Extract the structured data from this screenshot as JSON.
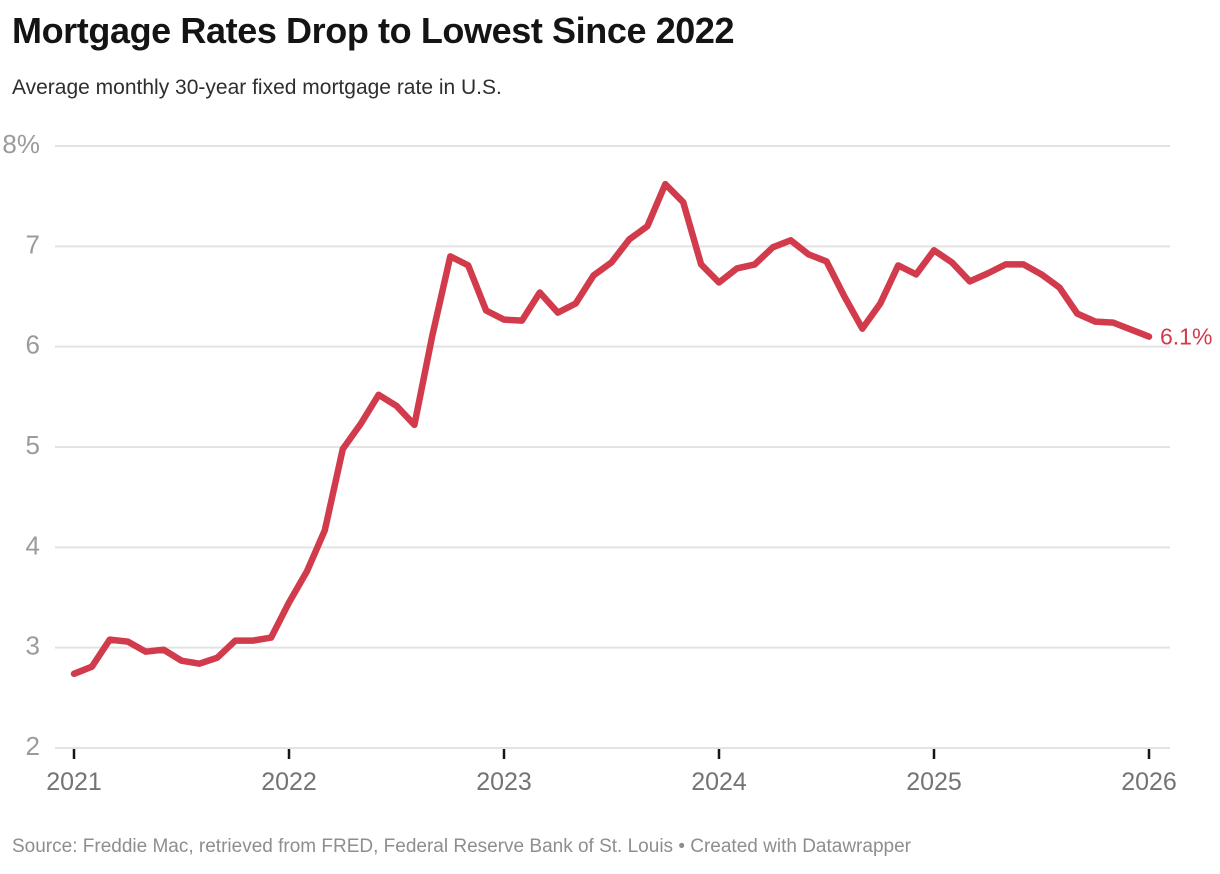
{
  "header": {
    "title": "Mortgage Rates Drop to Lowest Since 2022",
    "subtitle": "Average monthly 30-year fixed mortgage rate in U.S."
  },
  "footer": {
    "source": "Source: Freddie Mac, retrieved from FRED, Federal Reserve Bank of St. Louis • Created with Datawrapper"
  },
  "colors": {
    "line": "#d23b4c",
    "end_label": "#d23b4c",
    "gridline": "#e3e3e3",
    "tick_mark": "#161616",
    "y_label": "#9b9b9b",
    "x_label": "#747474"
  },
  "chart_data": {
    "type": "line",
    "title": "Mortgage Rates Drop to Lowest Since 2022",
    "subtitle": "Average monthly 30-year fixed mortgage rate in U.S.",
    "series_name": "Average monthly 30-year fixed mortgage rate in U.S.",
    "unit": "%",
    "xlabel": "",
    "ylabel": "",
    "legend": "none",
    "grid": "horizontal",
    "ylim": [
      2,
      8
    ],
    "x": [
      "2021-01",
      "2021-02",
      "2021-03",
      "2021-04",
      "2021-05",
      "2021-06",
      "2021-07",
      "2021-08",
      "2021-09",
      "2021-10",
      "2021-11",
      "2021-12",
      "2022-01",
      "2022-02",
      "2022-03",
      "2022-04",
      "2022-05",
      "2022-06",
      "2022-07",
      "2022-08",
      "2022-09",
      "2022-10",
      "2022-11",
      "2022-12",
      "2023-01",
      "2023-02",
      "2023-03",
      "2023-04",
      "2023-05",
      "2023-06",
      "2023-07",
      "2023-08",
      "2023-09",
      "2023-10",
      "2023-11",
      "2023-12",
      "2024-01",
      "2024-02",
      "2024-03",
      "2024-04",
      "2024-05",
      "2024-06",
      "2024-07",
      "2024-08",
      "2024-09",
      "2024-10",
      "2024-11",
      "2024-12",
      "2025-01",
      "2025-02",
      "2025-03",
      "2025-04",
      "2025-05",
      "2025-06",
      "2025-07",
      "2025-08",
      "2025-09",
      "2025-10",
      "2025-11",
      "2025-12",
      "2026-01"
    ],
    "values": [
      2.74,
      2.81,
      3.08,
      3.06,
      2.96,
      2.98,
      2.87,
      2.84,
      2.9,
      3.07,
      3.07,
      3.1,
      3.45,
      3.76,
      4.17,
      4.98,
      5.23,
      5.52,
      5.41,
      5.22,
      6.11,
      6.9,
      6.81,
      6.36,
      6.27,
      6.26,
      6.54,
      6.34,
      6.43,
      6.71,
      6.84,
      7.07,
      7.2,
      7.62,
      7.44,
      6.82,
      6.64,
      6.78,
      6.82,
      6.99,
      7.06,
      6.92,
      6.85,
      6.5,
      6.18,
      6.43,
      6.81,
      6.72,
      6.96,
      6.84,
      6.65,
      6.73,
      6.82,
      6.82,
      6.72,
      6.59,
      6.33,
      6.25,
      6.24,
      6.17,
      6.1
    ],
    "yticks": [
      {
        "value": 8,
        "label": "8%"
      },
      {
        "value": 7,
        "label": "7"
      },
      {
        "value": 6,
        "label": "6"
      },
      {
        "value": 5,
        "label": "5"
      },
      {
        "value": 4,
        "label": "4"
      },
      {
        "value": 3,
        "label": "3"
      },
      {
        "value": 2,
        "label": "2"
      }
    ],
    "xticks": [
      {
        "label": "2021",
        "month_index": 0
      },
      {
        "label": "2022",
        "month_index": 12
      },
      {
        "label": "2023",
        "month_index": 24
      },
      {
        "label": "2024",
        "month_index": 36
      },
      {
        "label": "2025",
        "month_index": 48
      },
      {
        "label": "2026",
        "month_index": 60
      }
    ],
    "end_label": "6.1%"
  }
}
